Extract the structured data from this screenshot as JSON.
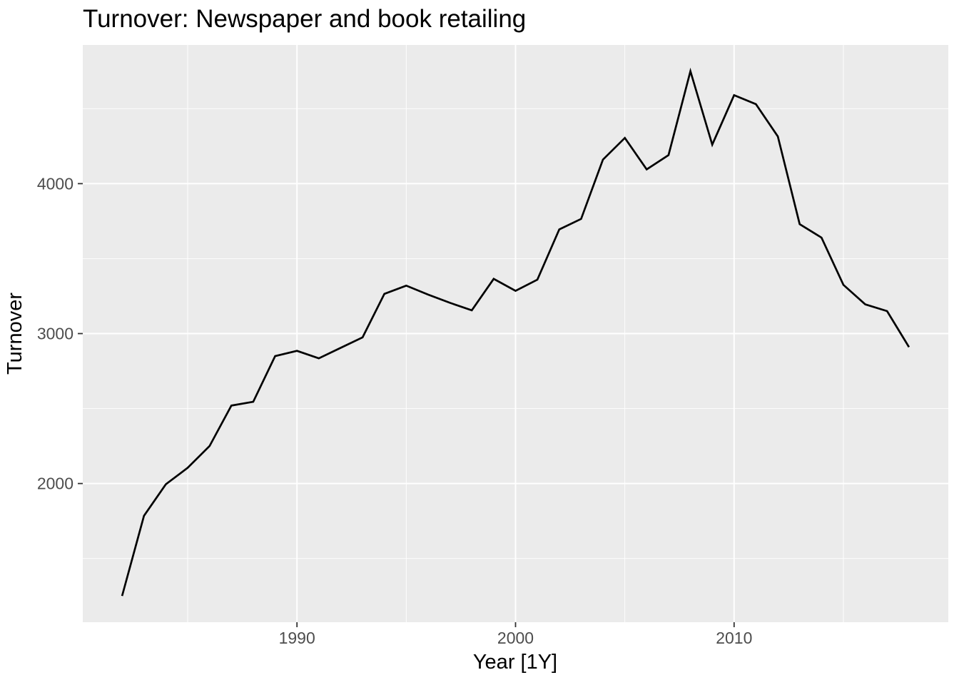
{
  "chart_data": {
    "type": "line",
    "title": "Turnover: Newspaper and book retailing",
    "xlabel": "Year [1Y]",
    "ylabel": "Turnover",
    "series": [
      {
        "name": "Turnover",
        "x": [
          1982,
          1983,
          1984,
          1985,
          1986,
          1987,
          1988,
          1989,
          1990,
          1991,
          1992,
          1993,
          1994,
          1995,
          1996,
          1997,
          1998,
          1999,
          2000,
          2001,
          2002,
          2003,
          2004,
          2005,
          2006,
          2007,
          2008,
          2009,
          2010,
          2011,
          2012,
          2013,
          2014,
          2015,
          2016,
          2017,
          2018
        ],
        "values": [
          1250,
          1785,
          1995,
          2105,
          2250,
          2520,
          2545,
          2850,
          2885,
          2835,
          2905,
          2975,
          3265,
          3320,
          3260,
          3205,
          3155,
          3365,
          3285,
          3360,
          3695,
          3765,
          4160,
          4305,
          4095,
          4190,
          4750,
          4260,
          4590,
          4530,
          4315,
          3730,
          3640,
          3325,
          3195,
          3150,
          2910
        ]
      }
    ],
    "x_ticks": [
      1990,
      2000,
      2010
    ],
    "x_minor_ticks": [
      1985,
      1995,
      2005,
      2015
    ],
    "y_ticks": [
      2000,
      3000,
      4000
    ],
    "y_minor_ticks": [
      1500,
      2500,
      3500,
      4500
    ],
    "xlim": [
      1980.2,
      2019.8
    ],
    "ylim": [
      1075,
      4925
    ],
    "grid": "on",
    "legend": "none",
    "colors": {
      "line": "#000000",
      "panel_background": "#EBEBEB",
      "gridline": "#FFFFFF",
      "tick_label": "#4D4D4D",
      "tick_mark": "#333333",
      "title_text": "#000000",
      "page_background": "#FFFFFF"
    }
  }
}
